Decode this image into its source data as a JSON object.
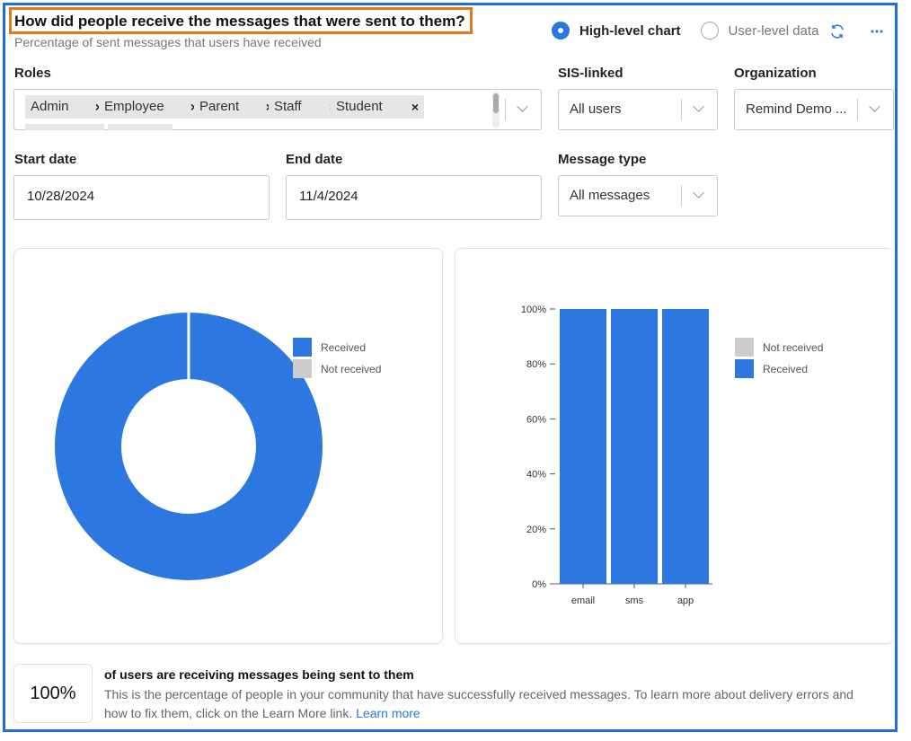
{
  "header": {
    "title": "How did people receive the messages that were sent to them?",
    "subtitle": "Percentage of sent messages that users have received"
  },
  "view_toggle": {
    "selected": "High-level chart",
    "option_1": "High-level chart",
    "option_2": "User-level data",
    "refresh_icon": "refresh-icon",
    "more_icon": "more-horizontal-icon"
  },
  "filters": {
    "roles": {
      "label": "Roles",
      "chips": [
        "Admin",
        "Employee",
        "Parent",
        "Staff",
        "Student"
      ]
    },
    "sis_linked": {
      "label": "SIS-linked",
      "value": "All users"
    },
    "organization": {
      "label": "Organization",
      "value": "Remind Demo ..."
    },
    "start_date": {
      "label": "Start date",
      "value": "10/28/2024"
    },
    "end_date": {
      "label": "End date",
      "value": "11/4/2024"
    },
    "message_type": {
      "label": "Message type",
      "value": "All messages"
    }
  },
  "colors": {
    "accent": "#2d78e0",
    "received": "#2d78e0",
    "not_received": "#cccccc",
    "title_highlight": "#e07b1a",
    "frame": "#1f6ee0"
  },
  "chart_data": [
    {
      "type": "pie",
      "variant": "donut",
      "categories": [
        "Received",
        "Not received"
      ],
      "values": [
        100,
        0
      ],
      "legend": [
        "Received",
        "Not received"
      ],
      "legend_position": "right"
    },
    {
      "type": "bar",
      "stacked": true,
      "categories": [
        "email",
        "sms",
        "app"
      ],
      "series": [
        {
          "name": "Not received",
          "values": [
            0,
            0,
            0
          ]
        },
        {
          "name": "Received",
          "values": [
            100,
            100,
            100
          ]
        }
      ],
      "ylim": [
        0,
        100
      ],
      "y_ticks": [
        "0%",
        "20%",
        "40%",
        "60%",
        "80%",
        "100%"
      ],
      "legend_position": "right"
    }
  ],
  "summary": {
    "value": "100%",
    "headline": "of users are receiving messages being sent to them",
    "body": "This is the percentage of people in your community that have successfully received messages. To learn more about delivery errors and how to fix them, click on the Learn More link.",
    "link_text": "Learn more"
  }
}
